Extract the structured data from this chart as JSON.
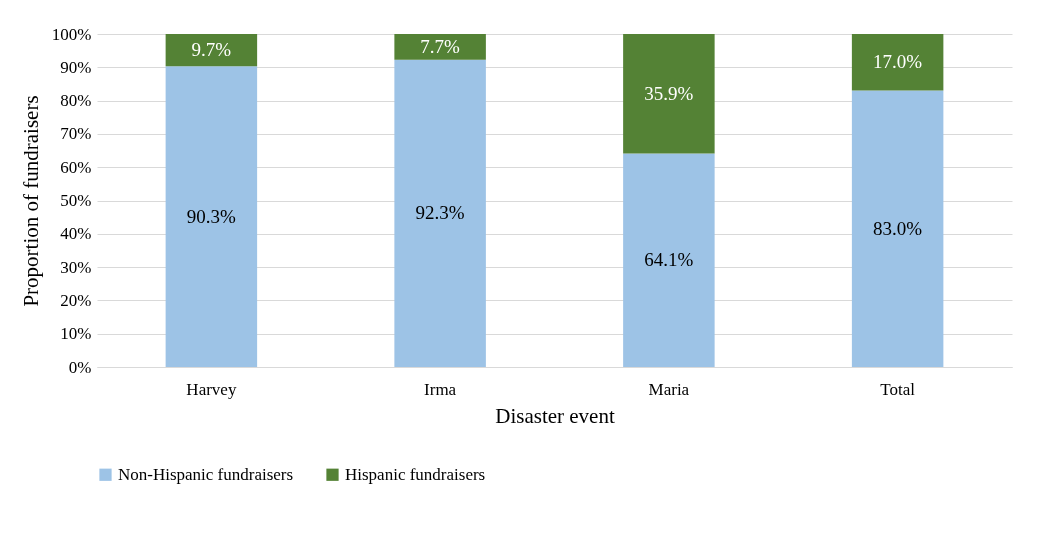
{
  "chart_data": {
    "type": "bar",
    "stacked": true,
    "xlabel": "Disaster event",
    "ylabel": "Proportion of fundraisers",
    "categories": [
      "Harvey",
      "Irma",
      "Maria",
      "Total"
    ],
    "series": [
      {
        "name": "Non-Hispanic fundraisers",
        "color": "#9dc3e6",
        "values": [
          90.3,
          92.3,
          64.1,
          83.0
        ],
        "value_labels": [
          "90.3%",
          "92.3%",
          "64.1%",
          "83.0%"
        ]
      },
      {
        "name": "Hispanic fundraisers",
        "color": "#548235",
        "values": [
          9.7,
          7.7,
          35.9,
          17.0
        ],
        "value_labels": [
          "9.7%",
          "7.7%",
          "35.9%",
          "17.0%"
        ]
      }
    ],
    "ylim": [
      0,
      100
    ],
    "yticks": [
      {
        "value": 0,
        "label": "0%"
      },
      {
        "value": 10,
        "label": "10%"
      },
      {
        "value": 20,
        "label": "20%"
      },
      {
        "value": 30,
        "label": "30%"
      },
      {
        "value": 40,
        "label": "40%"
      },
      {
        "value": 50,
        "label": "50%"
      },
      {
        "value": 60,
        "label": "60%"
      },
      {
        "value": 70,
        "label": "70%"
      },
      {
        "value": 80,
        "label": "80%"
      },
      {
        "value": 90,
        "label": "90%"
      },
      {
        "value": 100,
        "label": "100%"
      }
    ],
    "grid": "y",
    "legend": "bottom"
  }
}
